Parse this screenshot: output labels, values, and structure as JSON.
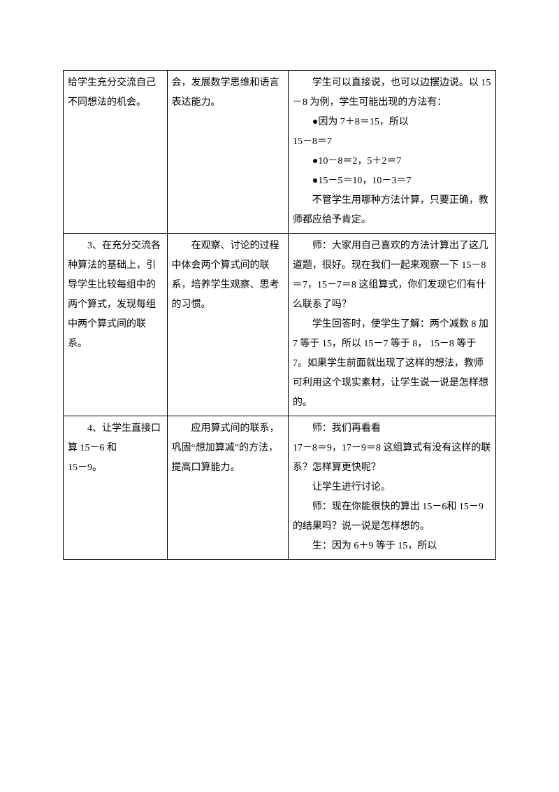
{
  "table": {
    "rows": [
      {
        "col1": [
          "给学生充分交流自己不同想法的机会。"
        ],
        "col2": [
          "会，发展数学思维和语言表达能力。"
        ],
        "col3": [
          "",
          "学生可以直接说，也可以边摆边说。以 15－8 为例，学生可能出现的方法有：",
          "●因为 7＋8＝15，所以",
          "15－8＝7",
          "●10－8＝2，5＋2＝7",
          "●15－5＝10，10－3＝7",
          "不管学生用哪种方法计算，只要正确，教师都应给予肯定。"
        ]
      },
      {
        "col1": [
          "3、在充分交流各种算法的基础上，引导学生比较每组中的两个算式，发现每组中两个算式间的联系。"
        ],
        "col2": [
          "在观察、讨论的过程中体会两个算式间的联系，培养学生观察、思考的习惯。"
        ],
        "col3": [
          "师：大家用自己喜欢的方法计算出了这几道题，很好。现在我们一起来观察一下 15－8＝7，15－7＝8 这组算式，你们发现它们有什么联系了吗？",
          "学生回答时，使学生了解：两个减数 8 加 7 等于 15，所以 15－7 等于 8，  15－8 等于 7。如果学生前面就出现了这样的想法，教师可利用这个现实素材，让学生说一说是怎样想的。"
        ]
      },
      {
        "col1": [
          "4、让学生直接口算 15－6 和",
          "15－9。"
        ],
        "col2": [
          "应用算式间的联系，巩固“想加算减”的方法，提高口算能力。"
        ],
        "col3": [
          "师：我们再看看",
          "17－8＝9，17－9＝8 这组算式有没有这样的联系？怎样算更快呢？",
          "让学生进行讨论。",
          "师：现在你能很快的算出 15－6和 15－9 的结果吗？说一说是怎样想的。",
          "生：因为 6＋9 等于 15，所以"
        ]
      }
    ]
  }
}
